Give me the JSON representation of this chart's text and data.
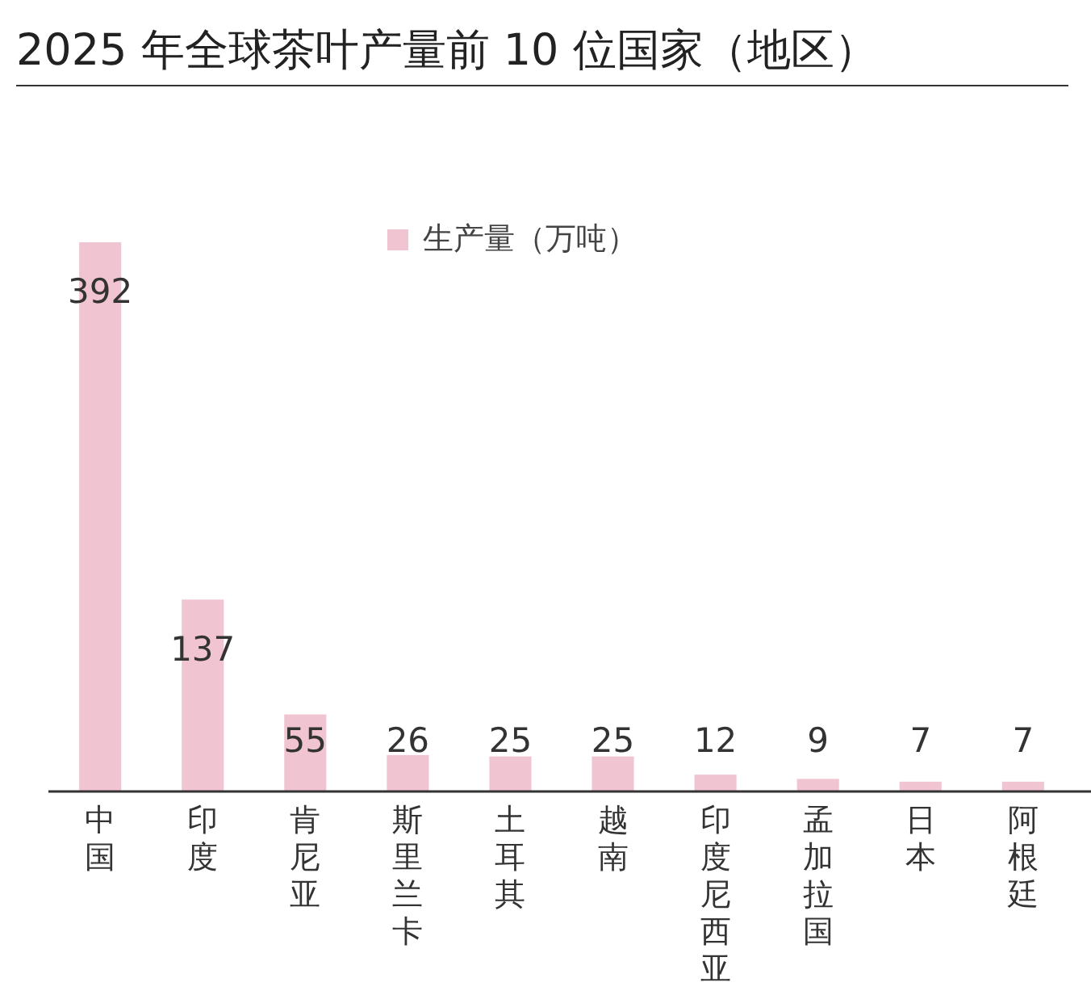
{
  "chart_data": {
    "type": "bar",
    "title": "2025 年全球茶叶产量前 10 位国家（地区）",
    "categories": [
      "中国",
      "印度",
      "肯尼亚",
      "斯里兰卡",
      "土耳其",
      "越南",
      "印度尼西亚",
      "孟加拉国",
      "日本",
      "阿根廷"
    ],
    "series": [
      {
        "name": "生产量（万吨）",
        "color": "#f0c4d0",
        "values": [
          392,
          137,
          55,
          26,
          25,
          25,
          12,
          9,
          7,
          7
        ]
      }
    ],
    "data_labels": true,
    "legend": "top"
  }
}
